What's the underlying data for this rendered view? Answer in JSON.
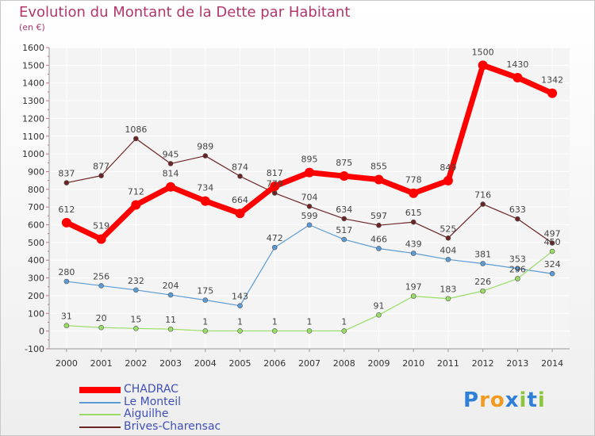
{
  "title": "Evolution du Montant de la Dette par Habitant",
  "subtitle": "(en €)",
  "logo": {
    "text": "Proxiti",
    "letters": [
      "P",
      "r",
      "o",
      "x",
      "i",
      "t",
      "i"
    ],
    "colors": [
      "#2e7fd6",
      "#f29a1f",
      "#f29a1f",
      "#2e7fd6",
      "#8cc63f",
      "#2e7fd6",
      "#8cc63f"
    ]
  },
  "chart_data": {
    "type": "line",
    "categories": [
      "2000",
      "2001",
      "2002",
      "2003",
      "2004",
      "2005",
      "2006",
      "2007",
      "2008",
      "2009",
      "2010",
      "2011",
      "2012",
      "2013",
      "2014"
    ],
    "ylim": [
      -100,
      1600
    ],
    "yticks": [
      -100,
      0,
      100,
      200,
      300,
      400,
      500,
      600,
      700,
      800,
      900,
      1000,
      1100,
      1200,
      1300,
      1400,
      1500,
      1600
    ],
    "grid": true,
    "legend_position": "bottom-left",
    "series": [
      {
        "name": "CHADRAC",
        "color": "#ff0000",
        "values": [
          612,
          519,
          712,
          814,
          734,
          664,
          817,
          895,
          875,
          855,
          778,
          849,
          1500,
          1430,
          1342
        ],
        "labels": [
          "612",
          "519",
          "712",
          "814",
          "734",
          "664",
          "817",
          "895",
          "875",
          "855",
          "778",
          "849",
          "1500",
          "1430",
          "1342"
        ]
      },
      {
        "name": "Le Monteil",
        "color": "#5b9bd5",
        "values": [
          280,
          256,
          232,
          204,
          175,
          143,
          472,
          599,
          517,
          466,
          439,
          404,
          381,
          353,
          324
        ],
        "labels": [
          "280",
          "256",
          "232",
          "204",
          "175",
          "143",
          "472",
          "599",
          "517",
          "466",
          "439",
          "404",
          "381",
          "353",
          "324"
        ]
      },
      {
        "name": "Aiguilhe",
        "color": "#99dd66",
        "values": [
          31,
          20,
          15,
          11,
          1,
          1,
          1,
          1,
          1,
          91,
          197,
          183,
          226,
          296,
          450
        ],
        "labels": [
          "31",
          "20",
          "15",
          "11",
          "1",
          "1",
          "1",
          "1",
          "1",
          "91",
          "197",
          "183",
          "226",
          "296",
          "450"
        ]
      },
      {
        "name": "Brives-Charensac",
        "color": "#6b2424",
        "values": [
          837,
          877,
          1086,
          945,
          989,
          874,
          779,
          704,
          634,
          597,
          615,
          525,
          716,
          633,
          497
        ],
        "labels": [
          "837",
          "877",
          "1086",
          "945",
          "989",
          "874",
          "779",
          "704",
          "634",
          "597",
          "615",
          "525",
          "716",
          "633",
          "497"
        ]
      }
    ]
  }
}
